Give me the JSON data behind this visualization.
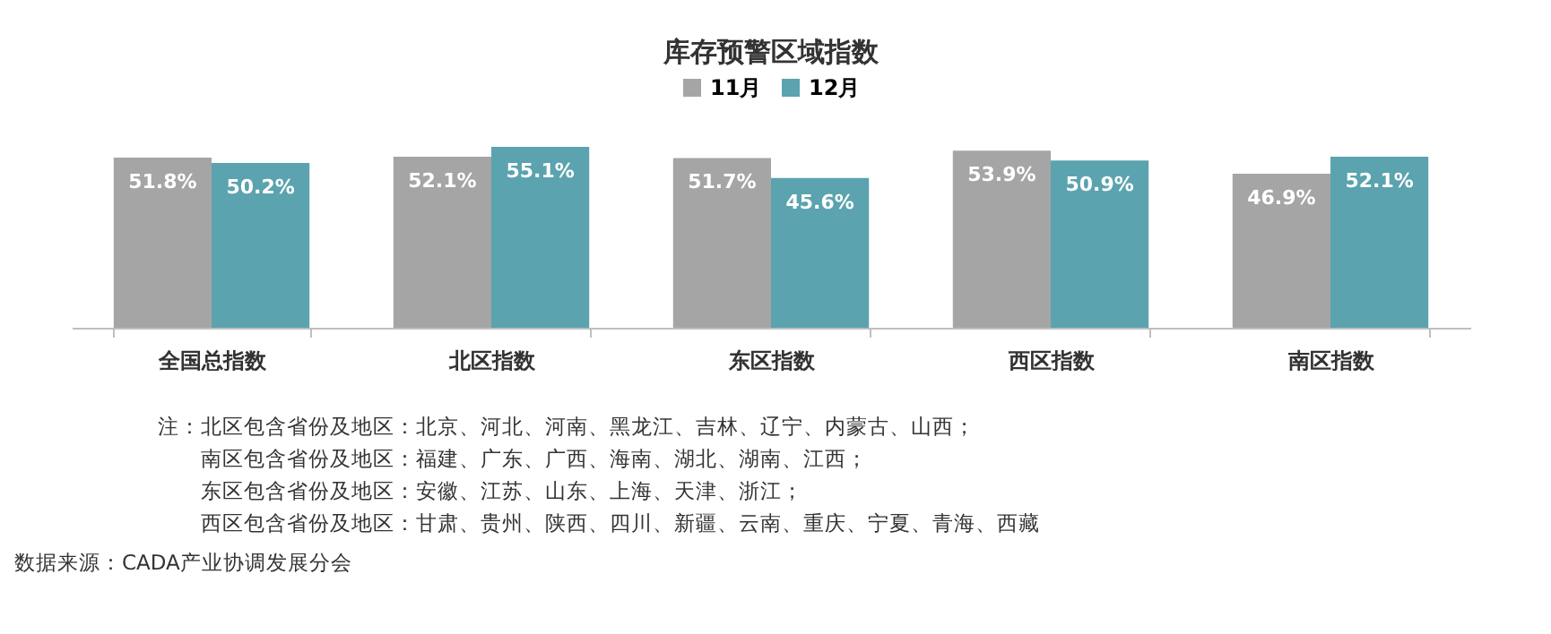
{
  "chart_data": {
    "type": "bar",
    "title": "库存预警区域指数",
    "categories": [
      "全国总指数",
      "北区指数",
      "东区指数",
      "西区指数",
      "南区指数"
    ],
    "series": [
      {
        "name": "11月",
        "color": "#a5a5a5",
        "values": [
          51.8,
          52.1,
          51.7,
          53.9,
          46.9
        ],
        "value_labels": [
          "51.8%",
          "52.1%",
          "51.7%",
          "53.9%",
          "46.9%"
        ]
      },
      {
        "name": "12月",
        "color": "#5ba3ae",
        "values": [
          50.2,
          55.1,
          45.6,
          50.9,
          52.1
        ],
        "value_labels": [
          "50.2%",
          "55.1%",
          "45.6%",
          "50.9%",
          "52.1%"
        ]
      }
    ],
    "legend": "top",
    "tick_labels": "x",
    "annotations": [
      "注：北区包含省份及地区：北京、河北、河南、黑龙江、吉林、辽宁、内蒙古、山西；",
      "南区包含省份及地区：福建、广东、广西、海南、湖北、湖南、江西；",
      "东区包含省份及地区：安徽、江苏、山东、上海、天津、浙江；",
      "西区包含省份及地区：甘肃、贵州、陕西、四川、新疆、云南、重庆、宁夏、青海、西藏",
      "数据来源：CADA产业协调发展分会"
    ]
  }
}
